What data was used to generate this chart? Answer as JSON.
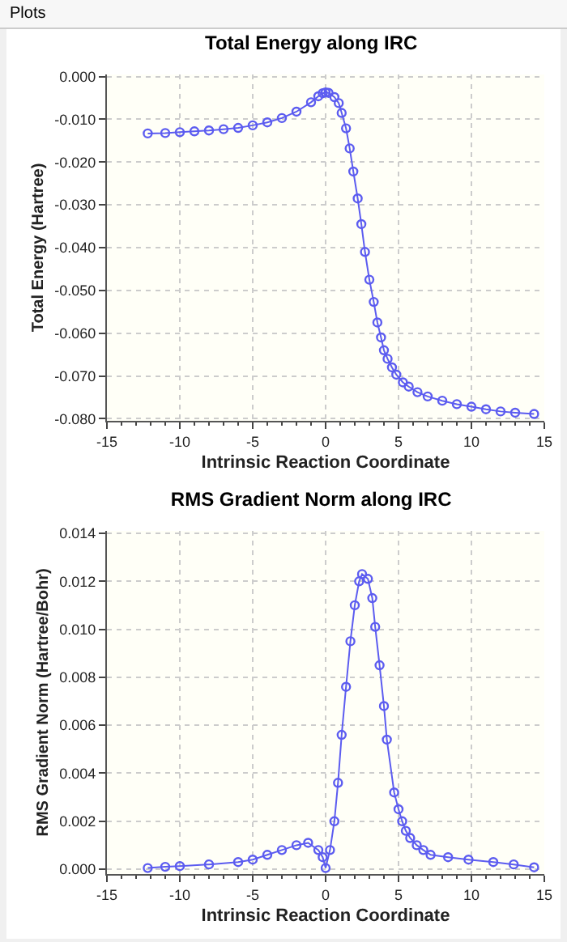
{
  "chart_data": [
    {
      "type": "line",
      "title": "Total Energy along IRC",
      "xlabel": "Intrinsic Reaction Coordinate",
      "ylabel": "Total Energy (Hartree)",
      "annotations": [
        "Plots"
      ],
      "x": [
        -12.2,
        -11,
        -10,
        -9,
        -8,
        -7,
        -6,
        -5,
        -4,
        -3,
        -2,
        -1,
        -0.5,
        -0.2,
        0,
        0.2,
        0.6,
        0.9,
        1.1,
        1.4,
        1.65,
        1.9,
        2.2,
        2.45,
        2.7,
        3.0,
        3.3,
        3.55,
        3.8,
        4.0,
        4.25,
        4.55,
        4.85,
        5.3,
        5.7,
        6.3,
        7,
        8,
        9,
        10,
        11,
        12,
        13,
        14.3
      ],
      "series": [
        {
          "color": "#5c5cf0",
          "values": [
            -0.0133,
            -0.0132,
            -0.013,
            -0.0128,
            -0.0126,
            -0.0123,
            -0.012,
            -0.0114,
            -0.0107,
            -0.0097,
            -0.0082,
            -0.006,
            -0.0046,
            -0.0039,
            -0.0037,
            -0.0038,
            -0.0048,
            -0.0062,
            -0.0085,
            -0.0121,
            -0.0168,
            -0.0222,
            -0.0285,
            -0.0345,
            -0.041,
            -0.0475,
            -0.0527,
            -0.0575,
            -0.061,
            -0.064,
            -0.066,
            -0.068,
            -0.0697,
            -0.0715,
            -0.0725,
            -0.0738,
            -0.0748,
            -0.0758,
            -0.0766,
            -0.0772,
            -0.0778,
            -0.0783,
            -0.0786,
            -0.0789
          ]
        }
      ],
      "marker": "circle",
      "grid": true,
      "xlim": [
        -15,
        15
      ],
      "xticks": [
        -15,
        -10,
        -5,
        0,
        5,
        10,
        15
      ],
      "ylim": [
        -0.0805,
        0.0005
      ],
      "yticks": [
        {
          "value": -0.08,
          "label": "-0.080"
        },
        {
          "value": -0.07,
          "label": "-0.070"
        },
        {
          "value": -0.06,
          "label": "-0.060"
        },
        {
          "value": -0.05,
          "label": "-0.050"
        },
        {
          "value": -0.04,
          "label": "-0.040"
        },
        {
          "value": -0.03,
          "label": "-0.030"
        },
        {
          "value": -0.02,
          "label": "-0.020"
        },
        {
          "value": -0.01,
          "label": "-0.010"
        },
        {
          "value": 0,
          "label": "0.000"
        }
      ]
    },
    {
      "type": "line",
      "title": "RMS Gradient Norm along IRC",
      "xlabel": "Intrinsic Reaction Coordinate",
      "ylabel": "RMS Gradient Norm (Hartree/Bohr)",
      "x": [
        -12.2,
        -11,
        -10,
        -8,
        -6,
        -5,
        -4,
        -3,
        -2,
        -1.2,
        -0.5,
        -0.2,
        0,
        0.3,
        0.6,
        0.85,
        1.1,
        1.4,
        1.7,
        2.0,
        2.3,
        2.5,
        2.9,
        3.2,
        3.4,
        3.7,
        4.0,
        4.2,
        4.7,
        5.0,
        5.25,
        5.5,
        5.8,
        6.25,
        6.7,
        7.2,
        8.4,
        9.8,
        11.5,
        12.9,
        14.3
      ],
      "series": [
        {
          "color": "#5c5cf0",
          "values": [
            5e-05,
            0.0001,
            0.00013,
            0.0002,
            0.0003,
            0.0004,
            0.0006,
            0.0008,
            0.001,
            0.0011,
            0.0008,
            0.0005,
            5e-05,
            0.0008,
            0.002,
            0.0036,
            0.0056,
            0.0076,
            0.0095,
            0.011,
            0.012,
            0.0123,
            0.0121,
            0.0113,
            0.0101,
            0.0085,
            0.0068,
            0.0054,
            0.0032,
            0.0025,
            0.002,
            0.0016,
            0.0013,
            0.001,
            0.0008,
            0.0006,
            0.0005,
            0.0004,
            0.0003,
            0.0002,
            8e-05
          ]
        }
      ],
      "marker": "circle",
      "grid": true,
      "xlim": [
        -15,
        15
      ],
      "xticks": [
        -15,
        -10,
        -5,
        0,
        5,
        10,
        15
      ],
      "ylim": [
        -0.0002,
        0.0141
      ],
      "yticks": [
        {
          "value": 0,
          "label": "0.000"
        },
        {
          "value": 0.002,
          "label": "0.002"
        },
        {
          "value": 0.004,
          "label": "0.004"
        },
        {
          "value": 0.006,
          "label": "0.006"
        },
        {
          "value": 0.008,
          "label": "0.008"
        },
        {
          "value": 0.01,
          "label": "0.010"
        },
        {
          "value": 0.012,
          "label": "0.012"
        },
        {
          "value": 0.014,
          "label": "0.014"
        }
      ]
    }
  ]
}
